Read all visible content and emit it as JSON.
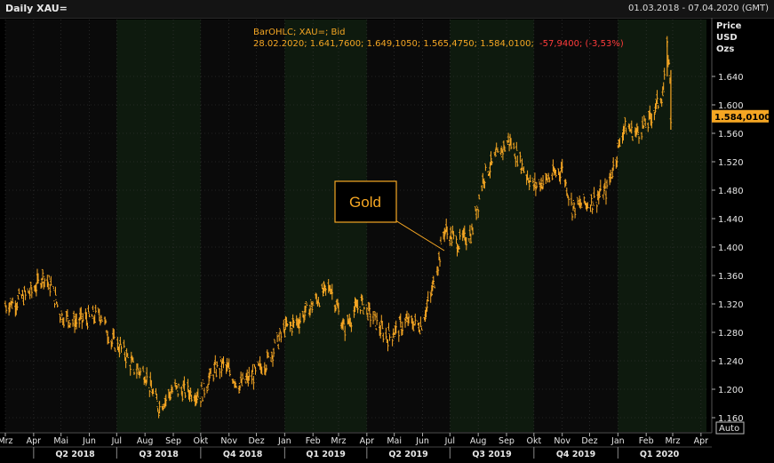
{
  "window": {
    "title": "Daily XAU=",
    "date_range": "01.03.2018 - 07.04.2020 (GMT)"
  },
  "info": {
    "line1": "BarOHLC; XAU=; Bid",
    "line2_prefix": "28.02.2020; 1.641,7600; 1.649,1050; 1.565,4750; 1.584,0100;",
    "line2_change": "-57,9400; (-3,53%)"
  },
  "axis": {
    "unit_lines": [
      "Price",
      "USD",
      "Ozs"
    ],
    "auto_label": "Auto",
    "last_price_label": "1.584,0100"
  },
  "annotation": {
    "label": "Gold"
  },
  "colors": {
    "background": "#000000",
    "plot_dark": "#0a0a0a",
    "plot_shade": "#0e1a0e",
    "series": "#f5a623",
    "grid": "#3a3a3a",
    "negative": "#ff3b3b"
  },
  "chart_data": {
    "type": "line",
    "ylim": [
      1.14,
      1.72
    ],
    "y_ticks": [
      1.16,
      1.2,
      1.24,
      1.28,
      1.32,
      1.36,
      1.4,
      1.44,
      1.48,
      1.52,
      1.56,
      1.6,
      1.64
    ],
    "y_tick_labels": [
      "1.160",
      "1.200",
      "1.240",
      "1.280",
      "1.320",
      "1.360",
      "1.400",
      "1.440",
      "1.480",
      "1.520",
      "1.560",
      "1.600",
      "1.640"
    ],
    "x_range": [
      "2018-03-01",
      "2020-04-07"
    ],
    "month_ticks": [
      {
        "date": "2018-03-01",
        "label": "Mrz"
      },
      {
        "date": "2018-04-01",
        "label": "Apr"
      },
      {
        "date": "2018-05-01",
        "label": "Mai"
      },
      {
        "date": "2018-06-01",
        "label": "Jun"
      },
      {
        "date": "2018-07-01",
        "label": "Jul"
      },
      {
        "date": "2018-08-01",
        "label": "Aug"
      },
      {
        "date": "2018-09-01",
        "label": "Sep"
      },
      {
        "date": "2018-10-01",
        "label": "Okt"
      },
      {
        "date": "2018-11-01",
        "label": "Nov"
      },
      {
        "date": "2018-12-01",
        "label": "Dez"
      },
      {
        "date": "2019-01-01",
        "label": "Jan"
      },
      {
        "date": "2019-02-01",
        "label": "Feb"
      },
      {
        "date": "2019-03-01",
        "label": "Mrz"
      },
      {
        "date": "2019-04-01",
        "label": "Apr"
      },
      {
        "date": "2019-05-01",
        "label": "Mai"
      },
      {
        "date": "2019-06-01",
        "label": "Jun"
      },
      {
        "date": "2019-07-01",
        "label": "Jul"
      },
      {
        "date": "2019-08-01",
        "label": "Aug"
      },
      {
        "date": "2019-09-01",
        "label": "Sep"
      },
      {
        "date": "2019-10-01",
        "label": "Okt"
      },
      {
        "date": "2019-11-01",
        "label": "Nov"
      },
      {
        "date": "2019-12-01",
        "label": "Dez"
      },
      {
        "date": "2020-01-01",
        "label": "Jan"
      },
      {
        "date": "2020-02-01",
        "label": "Feb"
      },
      {
        "date": "2020-03-01",
        "label": "Mrz"
      },
      {
        "date": "2020-04-01",
        "label": "Apr"
      }
    ],
    "quarters": [
      {
        "start": "2018-04-01",
        "end": "2018-07-01",
        "label": "Q2 2018"
      },
      {
        "start": "2018-07-01",
        "end": "2018-10-01",
        "label": "Q3 2018"
      },
      {
        "start": "2018-10-01",
        "end": "2019-01-01",
        "label": "Q4 2018"
      },
      {
        "start": "2019-01-01",
        "end": "2019-04-01",
        "label": "Q1 2019"
      },
      {
        "start": "2019-04-01",
        "end": "2019-07-01",
        "label": "Q2 2019"
      },
      {
        "start": "2019-07-01",
        "end": "2019-10-01",
        "label": "Q3 2019"
      },
      {
        "start": "2019-10-01",
        "end": "2020-01-01",
        "label": "Q4 2019"
      },
      {
        "start": "2020-01-01",
        "end": "2020-04-01",
        "label": "Q1 2020"
      }
    ],
    "series": [
      {
        "values": [
          {
            "date": "2018-03-01",
            "value": 1.318
          },
          {
            "date": "2018-03-15",
            "value": 1.325
          },
          {
            "date": "2018-04-01",
            "value": 1.34
          },
          {
            "date": "2018-04-11",
            "value": 1.36
          },
          {
            "date": "2018-04-20",
            "value": 1.345
          },
          {
            "date": "2018-05-01",
            "value": 1.305
          },
          {
            "date": "2018-05-15",
            "value": 1.295
          },
          {
            "date": "2018-06-01",
            "value": 1.3
          },
          {
            "date": "2018-06-14",
            "value": 1.305
          },
          {
            "date": "2018-06-25",
            "value": 1.268
          },
          {
            "date": "2018-07-06",
            "value": 1.258
          },
          {
            "date": "2018-07-20",
            "value": 1.23
          },
          {
            "date": "2018-08-01",
            "value": 1.222
          },
          {
            "date": "2018-08-16",
            "value": 1.175
          },
          {
            "date": "2018-09-01",
            "value": 1.2
          },
          {
            "date": "2018-09-15",
            "value": 1.198
          },
          {
            "date": "2018-10-01",
            "value": 1.192
          },
          {
            "date": "2018-10-15",
            "value": 1.225
          },
          {
            "date": "2018-10-26",
            "value": 1.235
          },
          {
            "date": "2018-11-13",
            "value": 1.205
          },
          {
            "date": "2018-11-30",
            "value": 1.222
          },
          {
            "date": "2018-12-14",
            "value": 1.242
          },
          {
            "date": "2019-01-01",
            "value": 1.285
          },
          {
            "date": "2019-01-15",
            "value": 1.295
          },
          {
            "date": "2019-02-01",
            "value": 1.32
          },
          {
            "date": "2019-02-20",
            "value": 1.345
          },
          {
            "date": "2019-03-07",
            "value": 1.285
          },
          {
            "date": "2019-03-25",
            "value": 1.322
          },
          {
            "date": "2019-04-08",
            "value": 1.3
          },
          {
            "date": "2019-04-23",
            "value": 1.273
          },
          {
            "date": "2019-05-15",
            "value": 1.295
          },
          {
            "date": "2019-05-30",
            "value": 1.29
          },
          {
            "date": "2019-06-10",
            "value": 1.33
          },
          {
            "date": "2019-06-20",
            "value": 1.39
          },
          {
            "date": "2019-06-25",
            "value": 1.425
          },
          {
            "date": "2019-07-10",
            "value": 1.405
          },
          {
            "date": "2019-07-25",
            "value": 1.42
          },
          {
            "date": "2019-08-07",
            "value": 1.5
          },
          {
            "date": "2019-08-23",
            "value": 1.53
          },
          {
            "date": "2019-09-04",
            "value": 1.55
          },
          {
            "date": "2019-09-20",
            "value": 1.51
          },
          {
            "date": "2019-10-01",
            "value": 1.485
          },
          {
            "date": "2019-10-15",
            "value": 1.495
          },
          {
            "date": "2019-11-01",
            "value": 1.51
          },
          {
            "date": "2019-11-12",
            "value": 1.455
          },
          {
            "date": "2019-12-02",
            "value": 1.463
          },
          {
            "date": "2019-12-20",
            "value": 1.48
          },
          {
            "date": "2020-01-08",
            "value": 1.57
          },
          {
            "date": "2020-01-20",
            "value": 1.56
          },
          {
            "date": "2020-02-03",
            "value": 1.575
          },
          {
            "date": "2020-02-20",
            "value": 1.62
          },
          {
            "date": "2020-02-24",
            "value": 1.68
          },
          {
            "date": "2020-02-27",
            "value": 1.642
          },
          {
            "date": "2020-02-28",
            "value": 1.584
          }
        ]
      }
    ]
  }
}
